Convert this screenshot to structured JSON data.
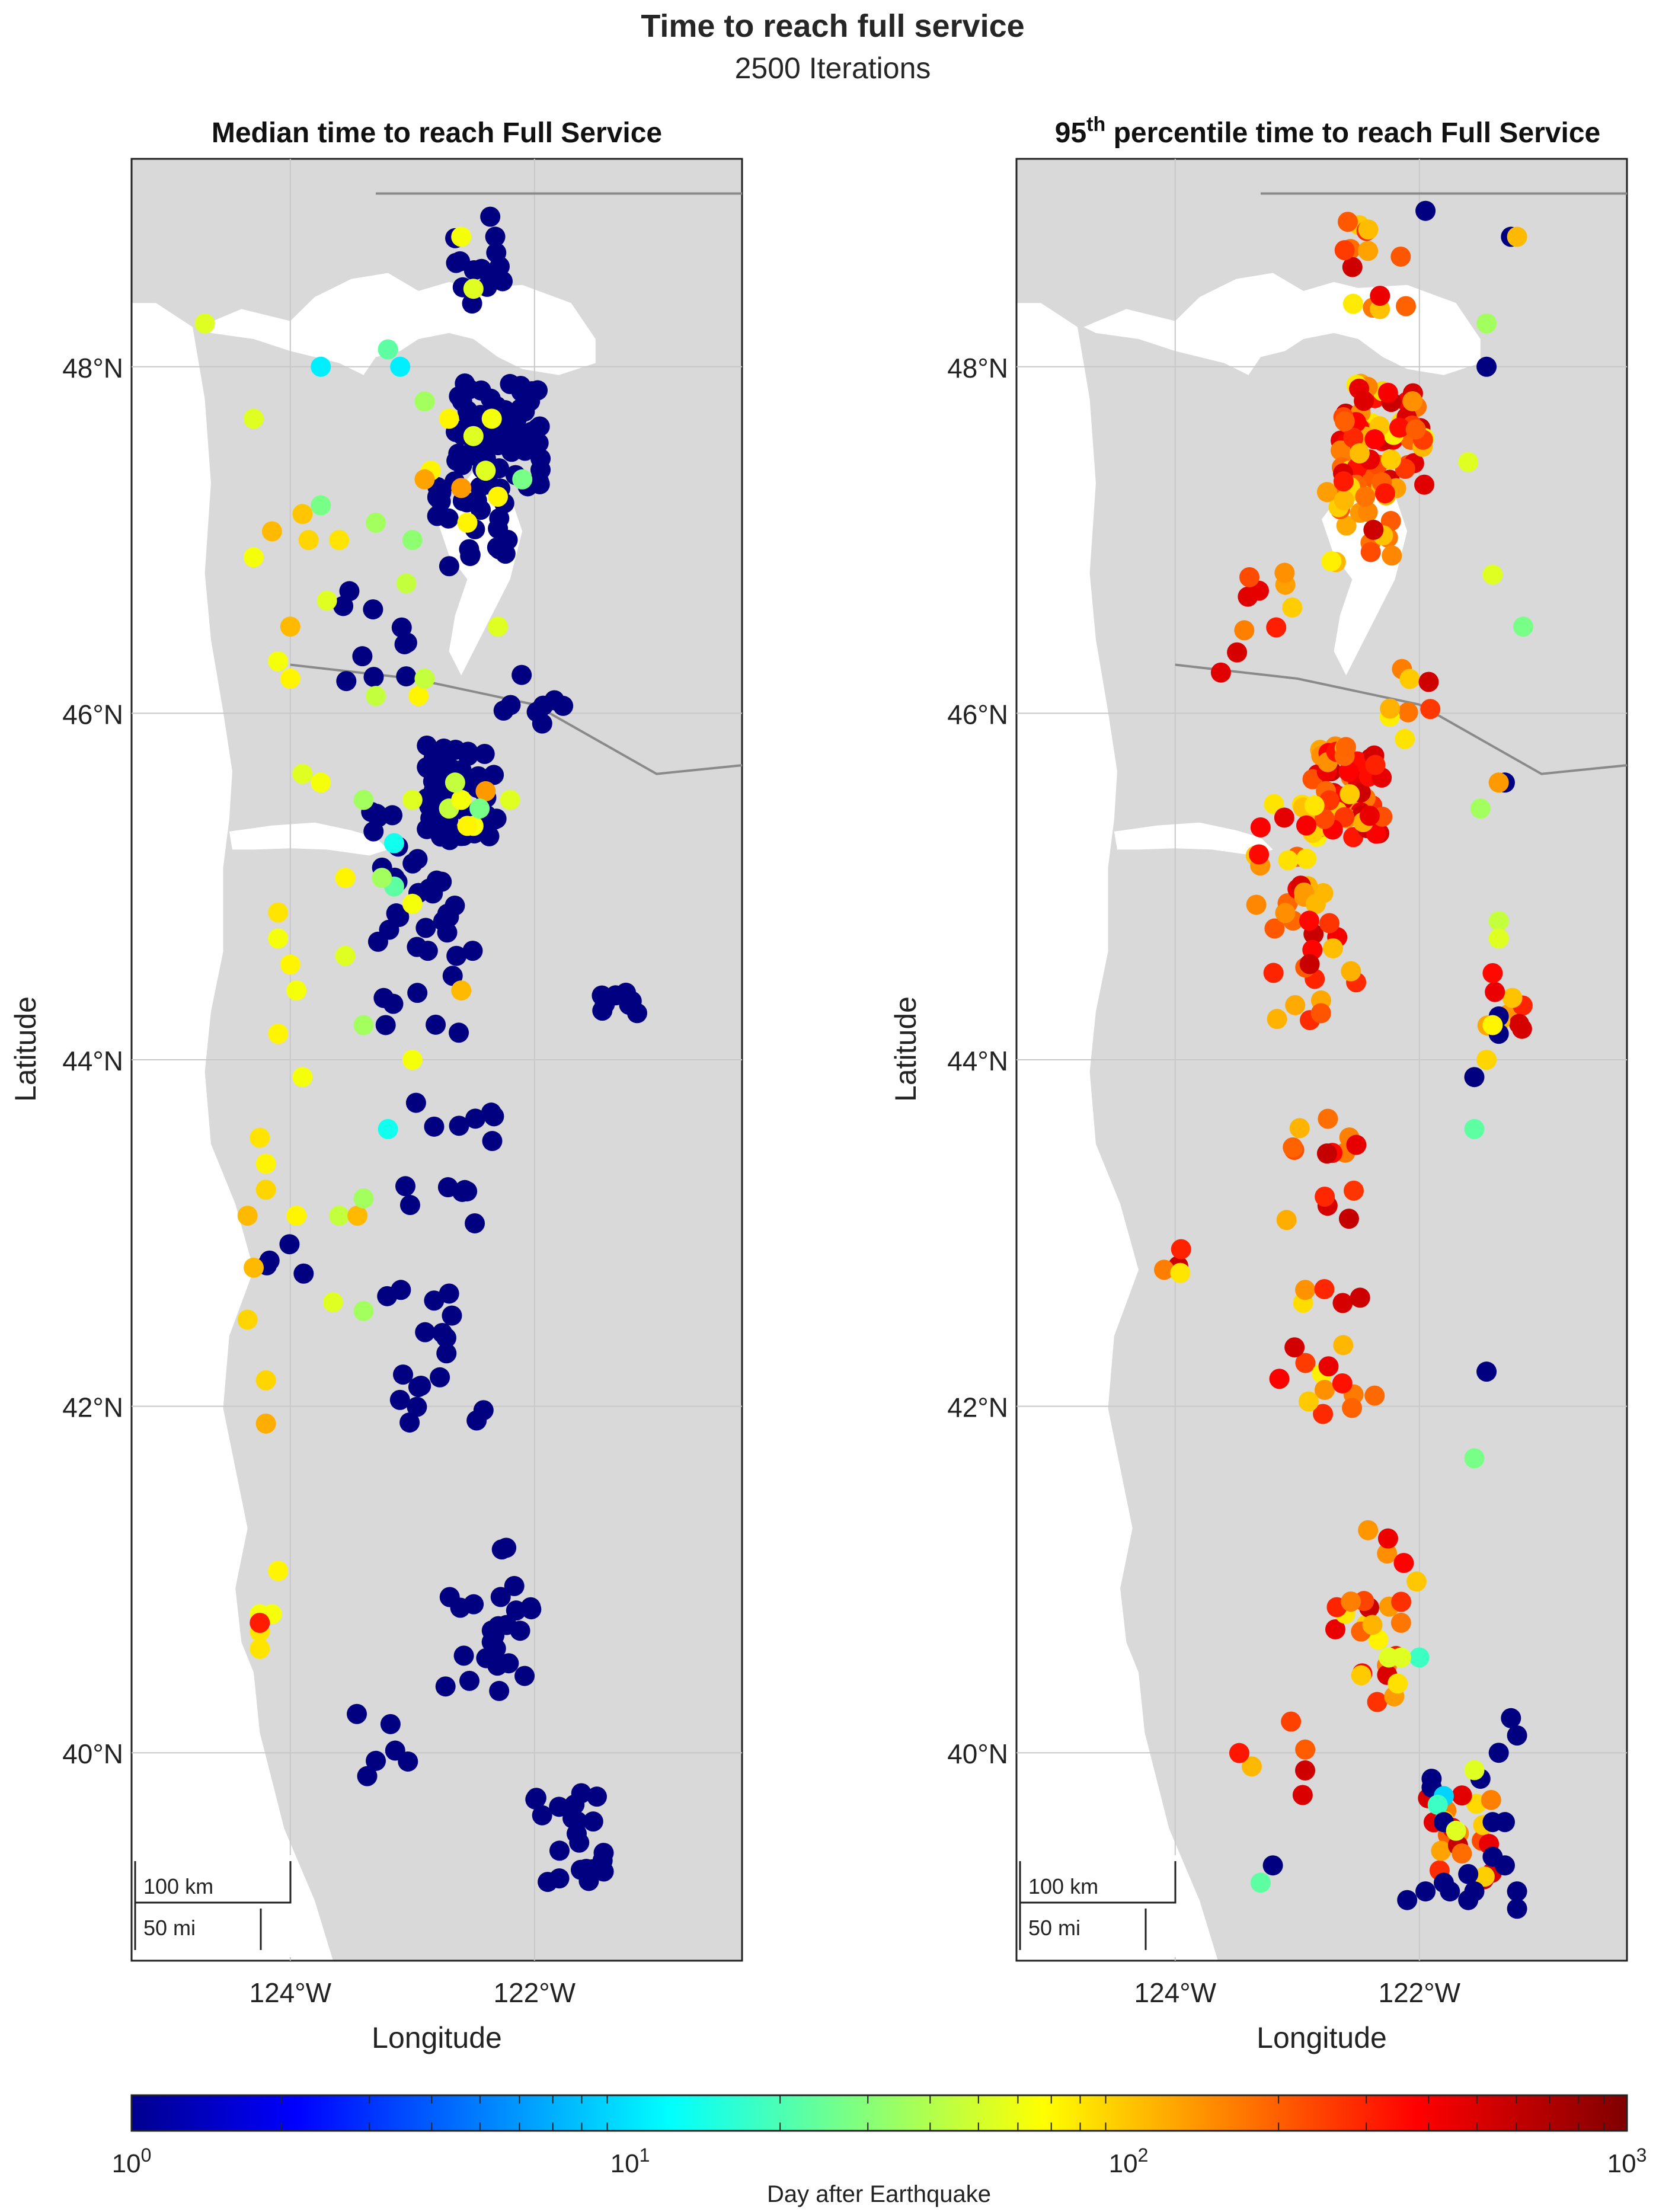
{
  "figure": {
    "title": "Time to reach full service",
    "subtitle": "2500 Iterations"
  },
  "colorbar": {
    "label": "Day after Earthquake",
    "scale": "log",
    "range": [
      1,
      1000
    ],
    "ticks": [
      {
        "value": 1,
        "base": "10",
        "exp": "0"
      },
      {
        "value": 10,
        "base": "10",
        "exp": "1"
      },
      {
        "value": 100,
        "base": "10",
        "exp": "2"
      },
      {
        "value": 1000,
        "base": "10",
        "exp": "3"
      }
    ],
    "colormap": "jet"
  },
  "chart_data": [
    {
      "type": "scatter",
      "title": "Median time to reach Full Service",
      "xlabel": "Longitude",
      "ylabel": "Latitude",
      "xlim": [
        -125.3,
        -120.3
      ],
      "ylim": [
        38.8,
        49.2
      ],
      "xticks": [
        {
          "value": -124,
          "label": "124°W"
        },
        {
          "value": -122,
          "label": "122°W"
        }
      ],
      "yticks": [
        {
          "value": 40,
          "label": "40°N"
        },
        {
          "value": 42,
          "label": "42°N"
        },
        {
          "value": 44,
          "label": "44°N"
        },
        {
          "value": 46,
          "label": "46°N"
        },
        {
          "value": 48,
          "label": "48°N"
        }
      ],
      "scalebar": {
        "km": "100 km",
        "mi": "50 mi"
      },
      "points_lonlat_days": [
        [
          -124.7,
          48.25,
          60
        ],
        [
          -123.75,
          48.0,
          12
        ],
        [
          -123.1,
          48.0,
          12
        ],
        [
          -123.2,
          48.1,
          25
        ],
        [
          -124.3,
          47.7,
          60
        ],
        [
          -124.15,
          47.05,
          120
        ],
        [
          -124.3,
          46.9,
          70
        ],
        [
          -123.9,
          47.15,
          110
        ],
        [
          -123.75,
          47.2,
          30
        ],
        [
          -123.85,
          47.0,
          100
        ],
        [
          -123.6,
          47.0,
          90
        ],
        [
          -123.3,
          47.1,
          40
        ],
        [
          -123.0,
          47.0,
          35
        ],
        [
          -123.05,
          46.75,
          50
        ],
        [
          -124.0,
          46.5,
          120
        ],
        [
          -124.1,
          46.3,
          70
        ],
        [
          -123.7,
          46.65,
          60
        ],
        [
          -124.0,
          46.2,
          80
        ],
        [
          -123.3,
          46.1,
          50
        ],
        [
          -122.95,
          46.1,
          80
        ],
        [
          -122.9,
          46.2,
          50
        ],
        [
          -122.3,
          46.5,
          60
        ],
        [
          -123.9,
          45.65,
          60
        ],
        [
          -123.75,
          45.6,
          70
        ],
        [
          -123.4,
          45.5,
          40
        ],
        [
          -123.0,
          45.5,
          60
        ],
        [
          -122.5,
          45.35,
          70
        ],
        [
          -123.15,
          45.25,
          15
        ],
        [
          -123.15,
          45.0,
          25
        ],
        [
          -123.55,
          45.05,
          80
        ],
        [
          -123.25,
          45.05,
          40
        ],
        [
          -123.0,
          44.9,
          70
        ],
        [
          -124.1,
          44.85,
          90
        ],
        [
          -124.1,
          44.7,
          70
        ],
        [
          -124.0,
          44.55,
          80
        ],
        [
          -123.95,
          44.4,
          70
        ],
        [
          -123.55,
          44.6,
          60
        ],
        [
          -122.6,
          44.4,
          120
        ],
        [
          -124.1,
          44.15,
          80
        ],
        [
          -123.4,
          44.2,
          40
        ],
        [
          -123.0,
          44.0,
          70
        ],
        [
          -123.9,
          43.9,
          70
        ],
        [
          -124.25,
          43.55,
          90
        ],
        [
          -124.2,
          43.4,
          80
        ],
        [
          -124.2,
          43.25,
          100
        ],
        [
          -124.35,
          43.1,
          120
        ],
        [
          -123.95,
          43.1,
          80
        ],
        [
          -123.6,
          43.1,
          50
        ],
        [
          -123.45,
          43.1,
          120
        ],
        [
          -123.4,
          43.2,
          40
        ],
        [
          -123.2,
          43.6,
          15
        ],
        [
          -124.3,
          42.8,
          120
        ],
        [
          -124.35,
          42.5,
          100
        ],
        [
          -123.65,
          42.6,
          60
        ],
        [
          -123.4,
          42.55,
          40
        ],
        [
          -124.2,
          42.15,
          100
        ],
        [
          -124.2,
          41.9,
          130
        ],
        [
          -124.1,
          41.05,
          80
        ],
        [
          -124.25,
          40.8,
          70
        ],
        [
          -124.25,
          40.7,
          90
        ],
        [
          -124.25,
          40.6,
          90
        ],
        [
          -124.15,
          40.8,
          70
        ],
        [
          -124.25,
          40.75,
          350
        ],
        [
          -122.6,
          48.75,
          70
        ],
        [
          -122.5,
          48.45,
          60
        ],
        [
          -122.9,
          47.8,
          40
        ],
        [
          -122.7,
          47.7,
          80
        ],
        [
          -122.4,
          47.4,
          60
        ],
        [
          -122.6,
          47.3,
          150
        ],
        [
          -122.85,
          47.4,
          80
        ],
        [
          -122.9,
          47.35,
          140
        ],
        [
          -122.1,
          47.35,
          30
        ],
        [
          -122.3,
          47.25,
          80
        ],
        [
          -122.5,
          47.6,
          60
        ],
        [
          -122.35,
          47.7,
          70
        ],
        [
          -122.55,
          47.1,
          80
        ],
        [
          -122.4,
          45.55,
          150
        ],
        [
          -122.55,
          45.35,
          80
        ],
        [
          -122.7,
          45.45,
          50
        ],
        [
          -122.45,
          45.45,
          30
        ],
        [
          -122.6,
          45.5,
          70
        ],
        [
          -122.65,
          45.6,
          50
        ],
        [
          -122.2,
          45.5,
          60
        ]
      ],
      "background_days": 1
    },
    {
      "type": "scatter",
      "title": "95th percentile time to reach Full Service",
      "title_base": "95",
      "title_sup": "th",
      "title_rest": " percentile time to reach Full Service",
      "xlabel": "Longitude",
      "ylabel": "Latitude",
      "xlim": [
        -125.3,
        -120.3
      ],
      "ylim": [
        38.8,
        49.2
      ],
      "xticks": [
        {
          "value": -124,
          "label": "124°W"
        },
        {
          "value": -122,
          "label": "122°W"
        }
      ],
      "yticks": [
        {
          "value": 40,
          "label": "40°N"
        },
        {
          "value": 42,
          "label": "42°N"
        },
        {
          "value": 44,
          "label": "44°N"
        },
        {
          "value": 46,
          "label": "46°N"
        },
        {
          "value": 48,
          "label": "48°N"
        }
      ],
      "scalebar": {
        "km": "100 km",
        "mi": "50 mi"
      },
      "points_lonlat_days": [
        [
          -121.95,
          48.9,
          1
        ],
        [
          -121.25,
          48.75,
          1
        ],
        [
          -121.2,
          48.75,
          120
        ],
        [
          -121.45,
          48.0,
          1
        ],
        [
          -121.45,
          48.25,
          40
        ],
        [
          -121.4,
          46.8,
          60
        ],
        [
          -121.15,
          46.5,
          30
        ],
        [
          -121.6,
          47.45,
          60
        ],
        [
          -121.3,
          45.6,
          1
        ],
        [
          -121.35,
          45.6,
          150
        ],
        [
          -121.5,
          45.45,
          40
        ],
        [
          -121.35,
          44.8,
          50
        ],
        [
          -121.35,
          44.7,
          60
        ],
        [
          -121.4,
          44.5,
          400
        ],
        [
          -121.35,
          44.25,
          1
        ],
        [
          -121.35,
          44.15,
          1
        ],
        [
          -121.4,
          44.2,
          80
        ],
        [
          -121.45,
          44.0,
          100
        ],
        [
          -121.55,
          43.9,
          1
        ],
        [
          -121.55,
          43.6,
          25
        ],
        [
          -121.45,
          42.2,
          1
        ],
        [
          -121.55,
          41.7,
          30
        ],
        [
          -121.25,
          40.2,
          1
        ],
        [
          -121.2,
          40.1,
          1
        ],
        [
          -121.35,
          40.0,
          1
        ],
        [
          -121.5,
          39.85,
          1
        ],
        [
          -121.55,
          39.9,
          60
        ],
        [
          -121.9,
          39.85,
          1
        ],
        [
          -121.9,
          39.8,
          1
        ],
        [
          -121.8,
          39.75,
          10
        ],
        [
          -121.85,
          39.7,
          20
        ],
        [
          -121.8,
          39.6,
          1
        ],
        [
          -121.7,
          39.55,
          60
        ],
        [
          -121.4,
          39.6,
          1
        ],
        [
          -121.3,
          39.6,
          1
        ],
        [
          -121.4,
          39.4,
          1
        ],
        [
          -121.3,
          39.35,
          1
        ],
        [
          -121.2,
          39.2,
          1
        ],
        [
          -121.2,
          39.1,
          1
        ],
        [
          -121.6,
          39.3,
          1
        ],
        [
          -121.55,
          39.2,
          1
        ],
        [
          -121.95,
          39.2,
          1
        ],
        [
          -122.1,
          39.15,
          1
        ],
        [
          -123.2,
          39.35,
          1
        ],
        [
          -123.3,
          39.25,
          25
        ],
        [
          -121.8,
          39.25,
          1
        ],
        [
          -121.75,
          39.2,
          1
        ],
        [
          -121.6,
          39.15,
          1
        ],
        [
          -122.0,
          40.55,
          20
        ],
        [
          -122.15,
          40.55,
          60
        ],
        [
          -122.25,
          40.55,
          60
        ]
      ],
      "background_days": 250
    }
  ]
}
